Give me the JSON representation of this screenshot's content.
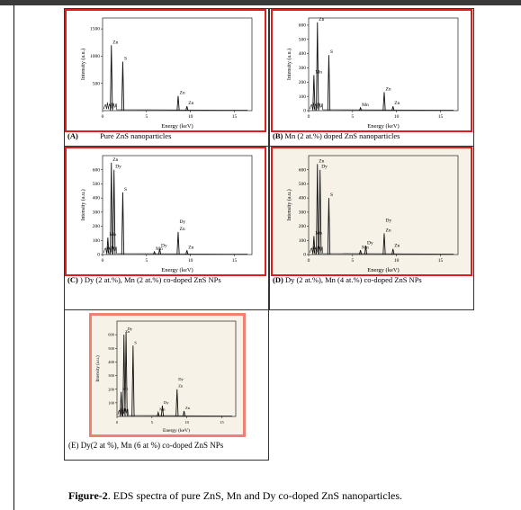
{
  "panels": [
    {
      "id": "A",
      "caption_tag": "(A)",
      "caption_text": "Pure ZnS  nanoparticles",
      "chart_data": {
        "type": "line",
        "ylabel": "Intensity (a.u.)",
        "xlabel": "Energy (keV)",
        "xlim": [
          0,
          17
        ],
        "ylim": [
          0,
          1700
        ],
        "xticks": [
          "0",
          "5",
          "10",
          "15"
        ],
        "yticks": [
          "500",
          "1000",
          "1500"
        ],
        "peaks": [
          {
            "x": 1.0,
            "y": 1200,
            "label": "Zn"
          },
          {
            "x": 2.3,
            "y": 900,
            "label": "S"
          },
          {
            "x": 8.6,
            "y": 270,
            "label": "Zn"
          },
          {
            "x": 9.6,
            "y": 80,
            "label": "Zn"
          }
        ]
      }
    },
    {
      "id": "B",
      "caption_tag": "(B)",
      "caption_text": "Mn (2 at.%) doped ZnS nanoparticles",
      "chart_data": {
        "type": "line",
        "ylabel": "Intensity (a.u.)",
        "xlabel": "Energy (keV)",
        "xlim": [
          0,
          17
        ],
        "ylim": [
          0,
          650
        ],
        "xticks": [
          "0",
          "5",
          "10",
          "15"
        ],
        "yticks": [
          "0",
          "100",
          "200",
          "300",
          "400",
          "500",
          "600"
        ],
        "peaks": [
          {
            "x": 0.6,
            "y": 250,
            "label": "Mn"
          },
          {
            "x": 1.0,
            "y": 620,
            "label": "Zn"
          },
          {
            "x": 2.3,
            "y": 390,
            "label": "S"
          },
          {
            "x": 5.9,
            "y": 20,
            "label": "Mn"
          },
          {
            "x": 8.6,
            "y": 130,
            "label": "Zn"
          },
          {
            "x": 9.6,
            "y": 30,
            "label": "Zn"
          }
        ]
      }
    },
    {
      "id": "C",
      "caption_tag": "(C)",
      "caption_text": ") Dy (2 at.%), Mn (2 at.%) co-doped ZnS NPs",
      "chart_data": {
        "type": "line",
        "ylabel": "Intensity (a.u.)",
        "xlabel": "Energy (keV)",
        "xlim": [
          0,
          17
        ],
        "ylim": [
          0,
          700
        ],
        "xticks": [
          "0",
          "5",
          "10",
          "15"
        ],
        "yticks": [
          "0",
          "100",
          "200",
          "300",
          "400",
          "500",
          "600"
        ],
        "peaks": [
          {
            "x": 0.6,
            "y": 120,
            "label": "Mn"
          },
          {
            "x": 1.0,
            "y": 650,
            "label": "Zn"
          },
          {
            "x": 1.3,
            "y": 600,
            "label": "Dy"
          },
          {
            "x": 2.3,
            "y": 440,
            "label": "S"
          },
          {
            "x": 5.9,
            "y": 20,
            "label": "Mn"
          },
          {
            "x": 6.5,
            "y": 40,
            "label": "Dy"
          },
          {
            "x": 8.6,
            "y": 160,
            "label": "Zn"
          },
          {
            "x": 9.6,
            "y": 30,
            "label": "Zn"
          }
        ],
        "extra_labels": [
          {
            "x": 8.6,
            "y": 210,
            "label": "Dy"
          }
        ]
      }
    },
    {
      "id": "D",
      "caption_tag": "(D)",
      "caption_text": "Dy  (2  at.%),  Mn  (4  at.%)  co-doped  ZnS NPs",
      "chart_data": {
        "type": "line",
        "ylabel": "Intensity (a.u.)",
        "xlabel": "Energy (keV)",
        "xlim": [
          0,
          17
        ],
        "ylim": [
          0,
          700
        ],
        "xticks": [
          "0",
          "5",
          "10",
          "15"
        ],
        "yticks": [
          "0",
          "100",
          "200",
          "300",
          "400",
          "500",
          "600"
        ],
        "peaks": [
          {
            "x": 0.6,
            "y": 130,
            "label": "Mn"
          },
          {
            "x": 1.0,
            "y": 640,
            "label": "Zn"
          },
          {
            "x": 1.3,
            "y": 600,
            "label": "Dy"
          },
          {
            "x": 2.3,
            "y": 400,
            "label": "S"
          },
          {
            "x": 5.9,
            "y": 30,
            "label": "Mn"
          },
          {
            "x": 6.5,
            "y": 60,
            "label": "Dy"
          },
          {
            "x": 8.6,
            "y": 150,
            "label": "Zn"
          },
          {
            "x": 9.6,
            "y": 40,
            "label": "Zn"
          }
        ],
        "extra_labels": [
          {
            "x": 8.6,
            "y": 220,
            "label": "Dy"
          }
        ]
      }
    },
    {
      "id": "E",
      "caption_tag": "",
      "caption_text": "(E) Dy(2 at %), Mn (6 at %) co-doped ZnS NPs",
      "chart_data": {
        "type": "line",
        "ylabel": "Intensity (a.u.)",
        "xlabel": "Energy (keV)",
        "xlim": [
          0,
          17
        ],
        "ylim": [
          0,
          700
        ],
        "xticks": [
          "0",
          "5",
          "10",
          "15"
        ],
        "yticks": [
          "100",
          "200",
          "300",
          "400",
          "500",
          "600"
        ],
        "peaks": [
          {
            "x": 0.6,
            "y": 180,
            "label": "Mn"
          },
          {
            "x": 1.0,
            "y": 600,
            "label": "Zn"
          },
          {
            "x": 1.3,
            "y": 620,
            "label": "Dy"
          },
          {
            "x": 2.3,
            "y": 520,
            "label": "S"
          },
          {
            "x": 5.9,
            "y": 30,
            "label": "Mn"
          },
          {
            "x": 6.5,
            "y": 80,
            "label": "Dy"
          },
          {
            "x": 8.6,
            "y": 200,
            "label": "Zn"
          },
          {
            "x": 9.6,
            "y": 40,
            "label": "Zn"
          }
        ],
        "extra_labels": [
          {
            "x": 8.6,
            "y": 250,
            "label": "Dy"
          }
        ]
      }
    }
  ],
  "figure_caption": {
    "label": "Figure-2",
    "text": ". EDS spectra of pure ZnS, Mn and Dy co-doped ZnS nanoparticles."
  }
}
